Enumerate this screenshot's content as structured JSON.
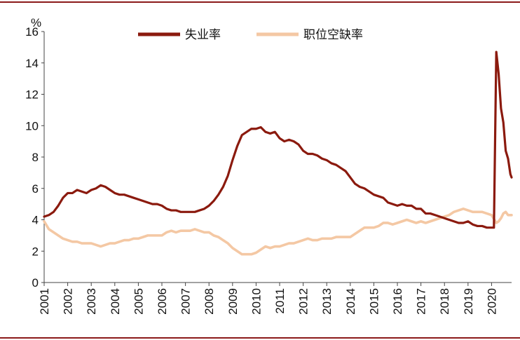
{
  "chart_data": {
    "type": "line",
    "ylabel": "%",
    "ylim": [
      0,
      16
    ],
    "yticks": [
      0,
      2,
      4,
      6,
      8,
      10,
      12,
      14,
      16
    ],
    "xlim": [
      2001.0,
      2020.85
    ],
    "xticks": [
      "2001",
      "2002",
      "2003",
      "2004",
      "2005",
      "2006",
      "2007",
      "2008",
      "2009",
      "2010",
      "2011",
      "2012",
      "2013",
      "2014",
      "2015",
      "2016",
      "2017",
      "2018",
      "2019",
      "2020"
    ],
    "legend_position": "top-center",
    "grid": false,
    "series": [
      {
        "name": "失业率",
        "color": "#8b1a0e",
        "points": [
          [
            2001.0,
            4.2
          ],
          [
            2001.2,
            4.3
          ],
          [
            2001.4,
            4.5
          ],
          [
            2001.6,
            4.9
          ],
          [
            2001.8,
            5.4
          ],
          [
            2002.0,
            5.7
          ],
          [
            2002.2,
            5.7
          ],
          [
            2002.4,
            5.9
          ],
          [
            2002.6,
            5.8
          ],
          [
            2002.8,
            5.7
          ],
          [
            2003.0,
            5.9
          ],
          [
            2003.2,
            6.0
          ],
          [
            2003.4,
            6.2
          ],
          [
            2003.6,
            6.1
          ],
          [
            2003.8,
            5.9
          ],
          [
            2004.0,
            5.7
          ],
          [
            2004.2,
            5.6
          ],
          [
            2004.4,
            5.6
          ],
          [
            2004.6,
            5.5
          ],
          [
            2004.8,
            5.4
          ],
          [
            2005.0,
            5.3
          ],
          [
            2005.2,
            5.2
          ],
          [
            2005.4,
            5.1
          ],
          [
            2005.6,
            5.0
          ],
          [
            2005.8,
            5.0
          ],
          [
            2006.0,
            4.9
          ],
          [
            2006.2,
            4.7
          ],
          [
            2006.4,
            4.6
          ],
          [
            2006.6,
            4.6
          ],
          [
            2006.8,
            4.5
          ],
          [
            2007.0,
            4.5
          ],
          [
            2007.2,
            4.5
          ],
          [
            2007.4,
            4.5
          ],
          [
            2007.6,
            4.6
          ],
          [
            2007.8,
            4.7
          ],
          [
            2008.0,
            4.9
          ],
          [
            2008.2,
            5.2
          ],
          [
            2008.4,
            5.6
          ],
          [
            2008.6,
            6.1
          ],
          [
            2008.8,
            6.8
          ],
          [
            2009.0,
            7.8
          ],
          [
            2009.2,
            8.7
          ],
          [
            2009.4,
            9.4
          ],
          [
            2009.6,
            9.6
          ],
          [
            2009.8,
            9.8
          ],
          [
            2010.0,
            9.8
          ],
          [
            2010.2,
            9.9
          ],
          [
            2010.4,
            9.6
          ],
          [
            2010.6,
            9.5
          ],
          [
            2010.8,
            9.6
          ],
          [
            2011.0,
            9.2
          ],
          [
            2011.2,
            9.0
          ],
          [
            2011.4,
            9.1
          ],
          [
            2011.6,
            9.0
          ],
          [
            2011.8,
            8.8
          ],
          [
            2012.0,
            8.4
          ],
          [
            2012.2,
            8.2
          ],
          [
            2012.4,
            8.2
          ],
          [
            2012.6,
            8.1
          ],
          [
            2012.8,
            7.9
          ],
          [
            2013.0,
            7.8
          ],
          [
            2013.2,
            7.6
          ],
          [
            2013.4,
            7.5
          ],
          [
            2013.6,
            7.3
          ],
          [
            2013.8,
            7.1
          ],
          [
            2014.0,
            6.7
          ],
          [
            2014.2,
            6.3
          ],
          [
            2014.4,
            6.1
          ],
          [
            2014.6,
            6.0
          ],
          [
            2014.8,
            5.8
          ],
          [
            2015.0,
            5.6
          ],
          [
            2015.2,
            5.5
          ],
          [
            2015.4,
            5.4
          ],
          [
            2015.6,
            5.1
          ],
          [
            2015.8,
            5.0
          ],
          [
            2016.0,
            4.9
          ],
          [
            2016.2,
            5.0
          ],
          [
            2016.4,
            4.9
          ],
          [
            2016.6,
            4.9
          ],
          [
            2016.8,
            4.7
          ],
          [
            2017.0,
            4.7
          ],
          [
            2017.2,
            4.4
          ],
          [
            2017.4,
            4.4
          ],
          [
            2017.6,
            4.3
          ],
          [
            2017.8,
            4.2
          ],
          [
            2018.0,
            4.1
          ],
          [
            2018.2,
            4.0
          ],
          [
            2018.4,
            3.9
          ],
          [
            2018.6,
            3.8
          ],
          [
            2018.8,
            3.8
          ],
          [
            2019.0,
            3.9
          ],
          [
            2019.2,
            3.7
          ],
          [
            2019.4,
            3.6
          ],
          [
            2019.6,
            3.6
          ],
          [
            2019.8,
            3.5
          ],
          [
            2020.0,
            3.5
          ],
          [
            2020.1,
            3.5
          ],
          [
            2020.2,
            14.7
          ],
          [
            2020.3,
            13.3
          ],
          [
            2020.4,
            11.1
          ],
          [
            2020.5,
            10.2
          ],
          [
            2020.6,
            8.4
          ],
          [
            2020.7,
            7.9
          ],
          [
            2020.8,
            6.9
          ],
          [
            2020.85,
            6.7
          ]
        ]
      },
      {
        "name": "职位空缺率",
        "color": "#f4c8a4",
        "points": [
          [
            2001.0,
            3.9
          ],
          [
            2001.2,
            3.4
          ],
          [
            2001.4,
            3.2
          ],
          [
            2001.6,
            3.0
          ],
          [
            2001.8,
            2.8
          ],
          [
            2002.0,
            2.7
          ],
          [
            2002.2,
            2.6
          ],
          [
            2002.4,
            2.6
          ],
          [
            2002.6,
            2.5
          ],
          [
            2002.8,
            2.5
          ],
          [
            2003.0,
            2.5
          ],
          [
            2003.2,
            2.4
          ],
          [
            2003.4,
            2.3
          ],
          [
            2003.6,
            2.4
          ],
          [
            2003.8,
            2.5
          ],
          [
            2004.0,
            2.5
          ],
          [
            2004.2,
            2.6
          ],
          [
            2004.4,
            2.7
          ],
          [
            2004.6,
            2.7
          ],
          [
            2004.8,
            2.8
          ],
          [
            2005.0,
            2.8
          ],
          [
            2005.2,
            2.9
          ],
          [
            2005.4,
            3.0
          ],
          [
            2005.6,
            3.0
          ],
          [
            2005.8,
            3.0
          ],
          [
            2006.0,
            3.0
          ],
          [
            2006.2,
            3.2
          ],
          [
            2006.4,
            3.3
          ],
          [
            2006.6,
            3.2
          ],
          [
            2006.8,
            3.3
          ],
          [
            2007.0,
            3.3
          ],
          [
            2007.2,
            3.3
          ],
          [
            2007.4,
            3.4
          ],
          [
            2007.6,
            3.3
          ],
          [
            2007.8,
            3.2
          ],
          [
            2008.0,
            3.2
          ],
          [
            2008.2,
            3.0
          ],
          [
            2008.4,
            2.9
          ],
          [
            2008.6,
            2.7
          ],
          [
            2008.8,
            2.5
          ],
          [
            2009.0,
            2.2
          ],
          [
            2009.2,
            2.0
          ],
          [
            2009.4,
            1.8
          ],
          [
            2009.6,
            1.8
          ],
          [
            2009.8,
            1.8
          ],
          [
            2010.0,
            1.9
          ],
          [
            2010.2,
            2.1
          ],
          [
            2010.4,
            2.3
          ],
          [
            2010.6,
            2.2
          ],
          [
            2010.8,
            2.3
          ],
          [
            2011.0,
            2.3
          ],
          [
            2011.2,
            2.4
          ],
          [
            2011.4,
            2.5
          ],
          [
            2011.6,
            2.5
          ],
          [
            2011.8,
            2.6
          ],
          [
            2012.0,
            2.7
          ],
          [
            2012.2,
            2.8
          ],
          [
            2012.4,
            2.7
          ],
          [
            2012.6,
            2.7
          ],
          [
            2012.8,
            2.8
          ],
          [
            2013.0,
            2.8
          ],
          [
            2013.2,
            2.8
          ],
          [
            2013.4,
            2.9
          ],
          [
            2013.6,
            2.9
          ],
          [
            2013.8,
            2.9
          ],
          [
            2014.0,
            2.9
          ],
          [
            2014.2,
            3.1
          ],
          [
            2014.4,
            3.3
          ],
          [
            2014.6,
            3.5
          ],
          [
            2014.8,
            3.5
          ],
          [
            2015.0,
            3.5
          ],
          [
            2015.2,
            3.6
          ],
          [
            2015.4,
            3.8
          ],
          [
            2015.6,
            3.8
          ],
          [
            2015.8,
            3.7
          ],
          [
            2016.0,
            3.8
          ],
          [
            2016.2,
            3.9
          ],
          [
            2016.4,
            4.0
          ],
          [
            2016.6,
            3.9
          ],
          [
            2016.8,
            3.8
          ],
          [
            2017.0,
            3.9
          ],
          [
            2017.2,
            3.8
          ],
          [
            2017.4,
            3.9
          ],
          [
            2017.6,
            4.0
          ],
          [
            2017.8,
            4.1
          ],
          [
            2018.0,
            4.2
          ],
          [
            2018.2,
            4.3
          ],
          [
            2018.4,
            4.5
          ],
          [
            2018.6,
            4.6
          ],
          [
            2018.8,
            4.7
          ],
          [
            2019.0,
            4.6
          ],
          [
            2019.2,
            4.5
          ],
          [
            2019.4,
            4.5
          ],
          [
            2019.6,
            4.5
          ],
          [
            2019.8,
            4.4
          ],
          [
            2020.0,
            4.3
          ],
          [
            2020.2,
            3.8
          ],
          [
            2020.3,
            3.9
          ],
          [
            2020.4,
            4.1
          ],
          [
            2020.5,
            4.4
          ],
          [
            2020.6,
            4.5
          ],
          [
            2020.7,
            4.3
          ],
          [
            2020.85,
            4.3
          ]
        ]
      }
    ]
  }
}
